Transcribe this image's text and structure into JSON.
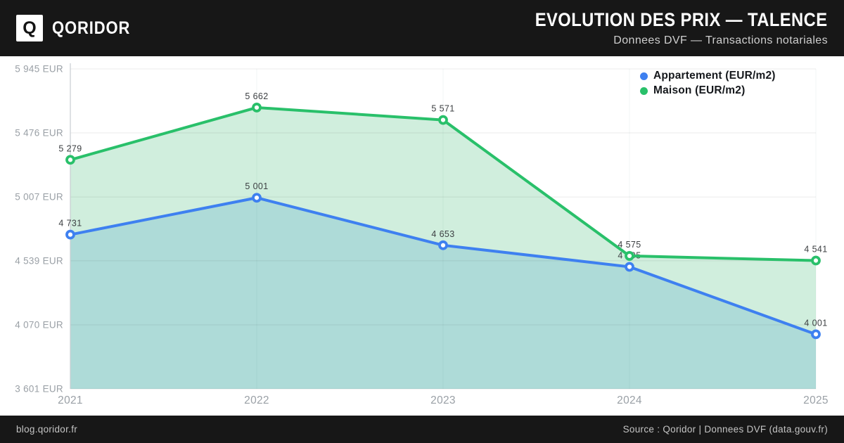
{
  "header": {
    "brand": "QORIDOR",
    "logo_letter": "Q",
    "title": "EVOLUTION DES PRIX — TALENCE",
    "subtitle": "Donnees DVF — Transactions notariales"
  },
  "footer": {
    "site": "blog.qoridor.fr",
    "source": "Source : Qoridor | Donnees DVF (data.gouv.fr)"
  },
  "chart_data": {
    "type": "line",
    "title": "EVOLUTION DES PRIX — TALENCE",
    "x": [
      "2021",
      "2022",
      "2023",
      "2024",
      "2025"
    ],
    "series": [
      {
        "name": "Appartement (EUR/m2)",
        "color": "#3e80f0",
        "fill": "#aedbd8",
        "values": [
          4731,
          5001,
          4653,
          4495,
          4001
        ]
      },
      {
        "name": "Maison (EUR/m2)",
        "color": "#29c06a",
        "fill": "#d0eedd",
        "values": [
          5279,
          5662,
          5571,
          4575,
          4541
        ]
      }
    ],
    "y_ticks": [
      5945,
      5476,
      5007,
      4539,
      4070,
      3601
    ],
    "y_tick_suffix": " EUR",
    "ylim": [
      3601,
      5945
    ],
    "grid": true,
    "legend_position": "top-right",
    "value_labels": true,
    "xlabel": "",
    "ylabel": ""
  }
}
